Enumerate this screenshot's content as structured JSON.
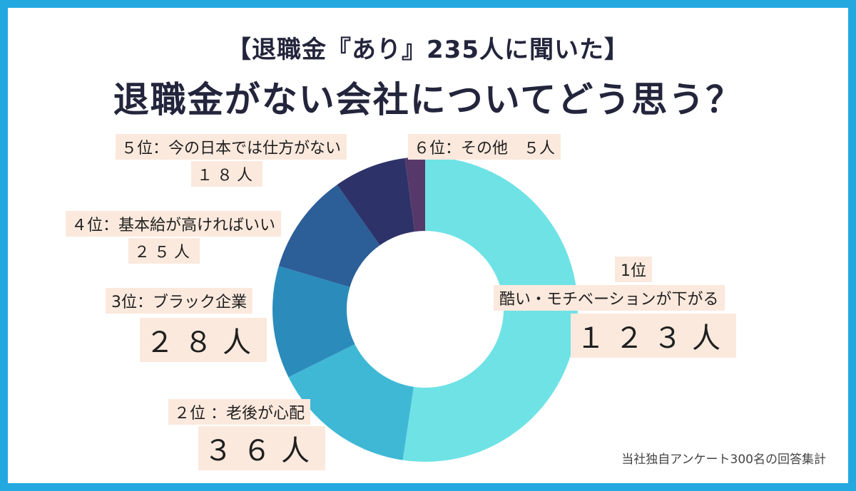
{
  "title": {
    "line1": "【退職金『あり』235人に聞いた】",
    "line2": "退職金がない会社についてどう思う？"
  },
  "chart_data": {
    "type": "pie",
    "title": "退職金がない会社についてどう思う？",
    "slices": [
      {
        "rank": "1位",
        "name": "酷い・モチベーションが下がる",
        "value": 123,
        "display": "１２３人",
        "color": "#6fe2e6"
      },
      {
        "rank": "2位",
        "name": "老後が心配",
        "value": 36,
        "display": "３６人",
        "color": "#3fb8d6"
      },
      {
        "rank": "3位",
        "name": "ブラック企業",
        "value": 28,
        "display": "２８人",
        "color": "#2b8cbb"
      },
      {
        "rank": "4位",
        "name": "基本給が高ければいい",
        "value": 25,
        "display": "２５人",
        "color": "#2c5e98"
      },
      {
        "rank": "5位",
        "name": "今の日本では仕方がない",
        "value": 18,
        "display": "１８人",
        "color": "#2d3369"
      },
      {
        "rank": "6位",
        "name": "その他",
        "value": 5,
        "display": "５人",
        "color": "#56396a"
      }
    ]
  },
  "labels": {
    "l1_rank": "1位",
    "l1_name": "酷い・モチベーションが下がる",
    "l1_count": "１２３人",
    "l2_name": "２位 ：老後が心配",
    "l2_count": "３６人",
    "l3_name": "3位：ブラック企業",
    "l3_count": "２８人",
    "l4_name": "４位：基本給が高ければいい",
    "l4_count": "２５人",
    "l5_name": "５位：今の日本では仕方がない",
    "l5_count": "１８人",
    "l6_name": "６位：その他　５人"
  },
  "footnote": "当社独自アンケート300名の回答集計"
}
